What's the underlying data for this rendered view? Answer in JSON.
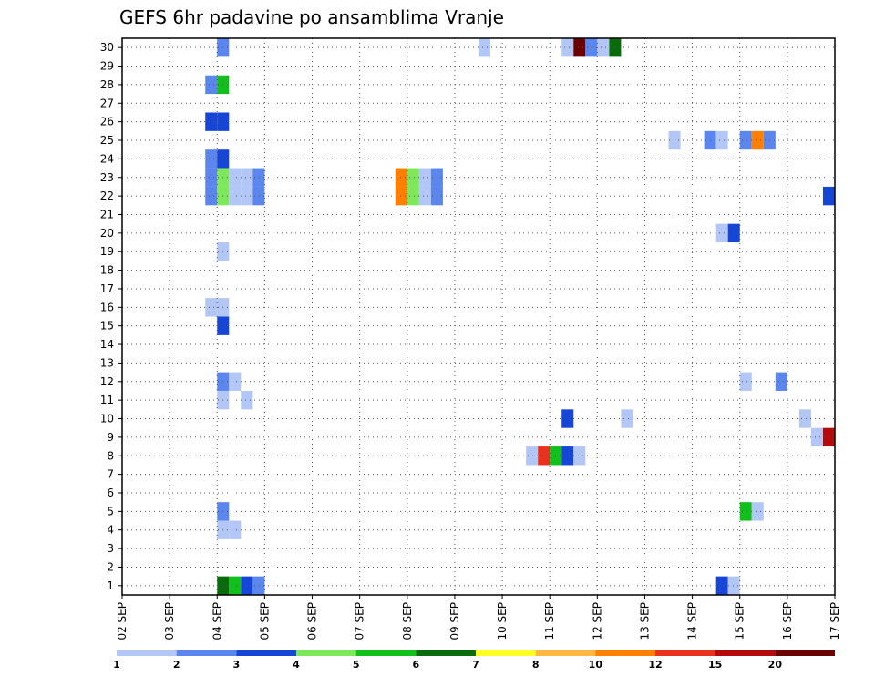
{
  "chart_data": {
    "type": "heatmap",
    "title": "GEFS 6hr padavine po ansamblima Vranje",
    "x_tick_labels": [
      "02 SEP",
      "03 SEP",
      "04 SEP",
      "05 SEP",
      "06 SEP",
      "07 SEP",
      "08 SEP",
      "09 SEP",
      "10 SEP",
      "11 SEP",
      "12 SEP",
      "13 SEP",
      "14 SEP",
      "15 SEP",
      "16 SEP",
      "17 SEP"
    ],
    "y_tick_labels": [
      "1",
      "2",
      "3",
      "4",
      "5",
      "6",
      "7",
      "8",
      "9",
      "10",
      "11",
      "12",
      "13",
      "14",
      "15",
      "16",
      "17",
      "18",
      "19",
      "20",
      "21",
      "22",
      "23",
      "24",
      "25",
      "26",
      "27",
      "28",
      "29",
      "30"
    ],
    "xlim_days": [
      2,
      17
    ],
    "ylim_members": [
      0.5,
      30.5
    ],
    "grid": true,
    "steps_per_day": 4,
    "colorbar": {
      "labels": [
        "1",
        "2",
        "3",
        "4",
        "5",
        "6",
        "7",
        "8",
        "10",
        "12",
        "15",
        "20"
      ],
      "colors": [
        "#b3c7f7",
        "#5a86ee",
        "#1546d8",
        "#7de85a",
        "#11bf1d",
        "#0a6b0a",
        "#ffff24",
        "#ffb840",
        "#ff7f00",
        "#e8321e",
        "#b40a0a",
        "#6b0000"
      ]
    },
    "cells": [
      {
        "m": 30,
        "s": 8,
        "c": 2
      },
      {
        "m": 30,
        "s": 30,
        "c": 1
      },
      {
        "m": 30,
        "s": 37,
        "c": 1
      },
      {
        "m": 30,
        "s": 38,
        "c": 12
      },
      {
        "m": 30,
        "s": 39,
        "c": 2
      },
      {
        "m": 30,
        "s": 40,
        "c": 1
      },
      {
        "m": 30,
        "s": 41,
        "c": 6
      },
      {
        "m": 28,
        "s": 7,
        "c": 2
      },
      {
        "m": 28,
        "s": 8,
        "c": 5
      },
      {
        "m": 26,
        "s": 7,
        "c": 3
      },
      {
        "m": 26,
        "s": 8,
        "c": 3
      },
      {
        "m": 25,
        "s": 46,
        "c": 1
      },
      {
        "m": 25,
        "s": 49,
        "c": 2
      },
      {
        "m": 25,
        "s": 50,
        "c": 1
      },
      {
        "m": 25,
        "s": 52,
        "c": 2
      },
      {
        "m": 25,
        "s": 53,
        "c": 9
      },
      {
        "m": 25,
        "s": 54,
        "c": 2
      },
      {
        "m": 24,
        "s": 7,
        "c": 2
      },
      {
        "m": 24,
        "s": 8,
        "c": 3
      },
      {
        "m": 23,
        "s": 7,
        "c": 2
      },
      {
        "m": 23,
        "s": 8,
        "c": 4
      },
      {
        "m": 23,
        "s": 9,
        "c": 1
      },
      {
        "m": 23,
        "s": 10,
        "c": 1
      },
      {
        "m": 23,
        "s": 11,
        "c": 2
      },
      {
        "m": 23,
        "s": 23,
        "c": 9
      },
      {
        "m": 23,
        "s": 24,
        "c": 4
      },
      {
        "m": 23,
        "s": 25,
        "c": 1
      },
      {
        "m": 23,
        "s": 26,
        "c": 2
      },
      {
        "m": 22,
        "s": 7,
        "c": 2
      },
      {
        "m": 22,
        "s": 8,
        "c": 4
      },
      {
        "m": 22,
        "s": 9,
        "c": 1
      },
      {
        "m": 22,
        "s": 10,
        "c": 1
      },
      {
        "m": 22,
        "s": 11,
        "c": 2
      },
      {
        "m": 22,
        "s": 23,
        "c": 9
      },
      {
        "m": 22,
        "s": 24,
        "c": 4
      },
      {
        "m": 22,
        "s": 25,
        "c": 1
      },
      {
        "m": 22,
        "s": 26,
        "c": 2
      },
      {
        "m": 22,
        "s": 59,
        "c": 3
      },
      {
        "m": 20,
        "s": 50,
        "c": 1
      },
      {
        "m": 20,
        "s": 51,
        "c": 3
      },
      {
        "m": 19,
        "s": 8,
        "c": 1
      },
      {
        "m": 16,
        "s": 7,
        "c": 1
      },
      {
        "m": 16,
        "s": 8,
        "c": 1
      },
      {
        "m": 15,
        "s": 8,
        "c": 3
      },
      {
        "m": 12,
        "s": 8,
        "c": 2
      },
      {
        "m": 12,
        "s": 9,
        "c": 1
      },
      {
        "m": 12,
        "s": 52,
        "c": 1
      },
      {
        "m": 12,
        "s": 55,
        "c": 2
      },
      {
        "m": 11,
        "s": 8,
        "c": 1
      },
      {
        "m": 11,
        "s": 10,
        "c": 1
      },
      {
        "m": 10,
        "s": 37,
        "c": 3
      },
      {
        "m": 10,
        "s": 42,
        "c": 1
      },
      {
        "m": 10,
        "s": 57,
        "c": 1
      },
      {
        "m": 9,
        "s": 58,
        "c": 1
      },
      {
        "m": 9,
        "s": 59,
        "c": 11
      },
      {
        "m": 8,
        "s": 34,
        "c": 1
      },
      {
        "m": 8,
        "s": 35,
        "c": 10
      },
      {
        "m": 8,
        "s": 36,
        "c": 5
      },
      {
        "m": 8,
        "s": 37,
        "c": 3
      },
      {
        "m": 8,
        "s": 38,
        "c": 1
      },
      {
        "m": 5,
        "s": 8,
        "c": 2
      },
      {
        "m": 5,
        "s": 52,
        "c": 5
      },
      {
        "m": 5,
        "s": 53,
        "c": 1
      },
      {
        "m": 4,
        "s": 8,
        "c": 1
      },
      {
        "m": 4,
        "s": 9,
        "c": 1
      },
      {
        "m": 1,
        "s": 8,
        "c": 6
      },
      {
        "m": 1,
        "s": 9,
        "c": 5
      },
      {
        "m": 1,
        "s": 10,
        "c": 3
      },
      {
        "m": 1,
        "s": 11,
        "c": 2
      },
      {
        "m": 1,
        "s": 50,
        "c": 3
      },
      {
        "m": 1,
        "s": 51,
        "c": 1
      }
    ]
  }
}
